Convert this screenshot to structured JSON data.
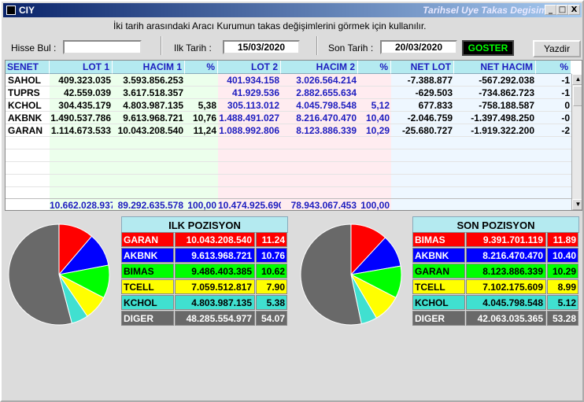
{
  "window": {
    "title": "CIY",
    "subtitle": "Tarihsel Uye Takas Degisim",
    "minimize": "_",
    "maximize": "□",
    "close": "X"
  },
  "instructions": "İki tarih arasındaki  Aracı Kurumun takas değişimlerini görmek için kullanılır.",
  "filters": {
    "hisse_label": "Hisse Bul :",
    "hisse_value": "",
    "ilk_label": "Ilk Tarih :",
    "ilk_value": "15/03/2020",
    "son_label": "Son Tarih :",
    "son_value": "20/03/2020",
    "goster": "GOSTER",
    "yazdir": "Yazdir"
  },
  "grid": {
    "headers": [
      "SENET",
      "LOT 1",
      "HACIM 1",
      "%",
      "LOT 2",
      "HACIM 2",
      "%",
      "NET LOT",
      "NET HACIM",
      "%"
    ],
    "rows": [
      [
        "SAHOL",
        "409.323.035",
        "3.593.856.253",
        "",
        "401.934.158",
        "3.026.564.214",
        "",
        "-7.388.877",
        "-567.292.038",
        "-1"
      ],
      [
        "TUPRS",
        "42.559.039",
        "3.617.518.357",
        "",
        "41.929.536",
        "2.882.655.634",
        "",
        "-629.503",
        "-734.862.723",
        "-1"
      ],
      [
        "KCHOL",
        "304.435.179",
        "4.803.987.135",
        "5,38",
        "305.113.012",
        "4.045.798.548",
        "5,12",
        "677.833",
        "-758.188.587",
        "0"
      ],
      [
        "AKBNK",
        "1.490.537.786",
        "9.613.968.721",
        "10,76",
        "1.488.491.027",
        "8.216.470.470",
        "10,40",
        "-2.046.759",
        "-1.397.498.250",
        "-0"
      ],
      [
        "GARAN",
        "1.114.673.533",
        "10.043.208.540",
        "11,24",
        "1.088.992.806",
        "8.123.886.339",
        "10,29",
        "-25.680.727",
        "-1.919.322.200",
        "-2"
      ]
    ],
    "totals": [
      "",
      "10.662.028.937",
      "89.292.635.578",
      "100,00",
      "10.474.925.690",
      "78.943.067.453",
      "100,00",
      "",
      "",
      ""
    ]
  },
  "ilk_pozisyon": {
    "title": "ILK POZISYON",
    "items": [
      {
        "name": "GARAN",
        "value": "10.043.208.540",
        "pct": "11.24",
        "bg": "#ff0000",
        "fg": "#ffffff"
      },
      {
        "name": "AKBNK",
        "value": "9.613.968.721",
        "pct": "10.76",
        "bg": "#0000ff",
        "fg": "#ffffff"
      },
      {
        "name": "BIMAS",
        "value": "9.486.403.385",
        "pct": "10.62",
        "bg": "#00ff00",
        "fg": "#000000"
      },
      {
        "name": "TCELL",
        "value": "7.059.512.817",
        "pct": "7.90",
        "bg": "#ffff00",
        "fg": "#000000"
      },
      {
        "name": "KCHOL",
        "value": "4.803.987.135",
        "pct": "5.38",
        "bg": "#40e0d0",
        "fg": "#000000"
      },
      {
        "name": "DIGER",
        "value": "48.285.554.977",
        "pct": "54.07",
        "bg": "#696969",
        "fg": "#ffffff"
      }
    ]
  },
  "son_pozisyon": {
    "title": "SON POZISYON",
    "items": [
      {
        "name": "BIMAS",
        "value": "9.391.701.119",
        "pct": "11.89",
        "bg": "#ff0000",
        "fg": "#ffffff"
      },
      {
        "name": "AKBNK",
        "value": "8.216.470.470",
        "pct": "10.40",
        "bg": "#0000ff",
        "fg": "#ffffff"
      },
      {
        "name": "GARAN",
        "value": "8.123.886.339",
        "pct": "10.29",
        "bg": "#00ff00",
        "fg": "#000000"
      },
      {
        "name": "TCELL",
        "value": "7.102.175.609",
        "pct": "8.99",
        "bg": "#ffff00",
        "fg": "#000000"
      },
      {
        "name": "KCHOL",
        "value": "4.045.798.548",
        "pct": "5.12",
        "bg": "#40e0d0",
        "fg": "#000000"
      },
      {
        "name": "DIGER",
        "value": "42.063.035.365",
        "pct": "53.28",
        "bg": "#696969",
        "fg": "#ffffff"
      }
    ]
  }
}
